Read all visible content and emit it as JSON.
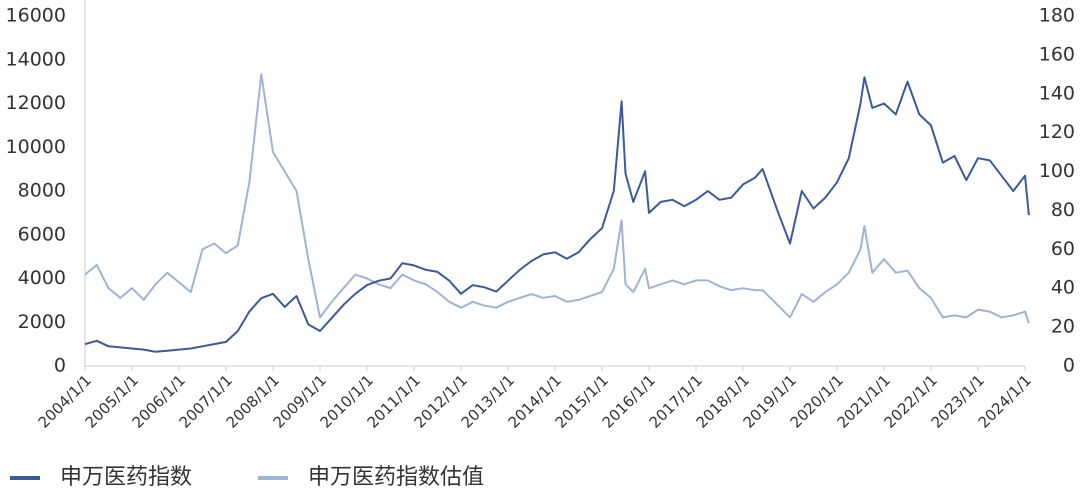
{
  "chart_data": {
    "type": "line",
    "x": [
      "2004/1/1",
      "2004/4/1",
      "2004/7/1",
      "2004/10/1",
      "2005/1/1",
      "2005/4/1",
      "2005/7/1",
      "2005/10/1",
      "2006/1/1",
      "2006/4/1",
      "2006/7/1",
      "2006/10/1",
      "2007/1/1",
      "2007/4/1",
      "2007/7/1",
      "2007/10/1",
      "2008/1/1",
      "2008/4/1",
      "2008/7/1",
      "2008/10/1",
      "2009/1/1",
      "2009/4/1",
      "2009/7/1",
      "2009/10/1",
      "2010/1/1",
      "2010/4/1",
      "2010/7/1",
      "2010/10/1",
      "2011/1/1",
      "2011/4/1",
      "2011/7/1",
      "2011/10/1",
      "2012/1/1",
      "2012/4/1",
      "2012/7/1",
      "2012/10/1",
      "2013/1/1",
      "2013/4/1",
      "2013/7/1",
      "2013/10/1",
      "2014/1/1",
      "2014/4/1",
      "2014/7/1",
      "2014/10/1",
      "2015/1/1",
      "2015/4/1",
      "2015/6/1",
      "2015/7/1",
      "2015/9/1",
      "2015/12/1",
      "2016/1/1",
      "2016/4/1",
      "2016/7/1",
      "2016/10/1",
      "2017/1/1",
      "2017/4/1",
      "2017/7/1",
      "2017/10/1",
      "2018/1/1",
      "2018/4/1",
      "2018/6/1",
      "2018/10/1",
      "2019/1/1",
      "2019/4/1",
      "2019/7/1",
      "2019/10/1",
      "2020/1/1",
      "2020/4/1",
      "2020/7/1",
      "2020/8/1",
      "2020/10/1",
      "2021/1/1",
      "2021/4/1",
      "2021/7/1",
      "2021/10/1",
      "2022/1/1",
      "2022/4/1",
      "2022/7/1",
      "2022/10/1",
      "2023/1/1",
      "2023/4/1",
      "2023/7/1",
      "2023/10/1",
      "2024/1/1",
      "2024/2/1"
    ],
    "series": [
      {
        "name": "申万医药指数",
        "color": "#3a5a9e",
        "values": [
          1000,
          1150,
          900,
          850,
          800,
          750,
          650,
          700,
          750,
          800,
          900,
          1000,
          1100,
          1600,
          2500,
          3100,
          3300,
          2700,
          3200,
          1900,
          1600,
          2200,
          2800,
          3300,
          3700,
          3900,
          4000,
          4700,
          4600,
          4400,
          4300,
          3900,
          3300,
          3700,
          3600,
          3400,
          3900,
          4400,
          4800,
          5100,
          5200,
          4900,
          5200,
          5800,
          6300,
          8000,
          12100,
          8800,
          7500,
          8900,
          7000,
          7500,
          7600,
          7300,
          7600,
          8000,
          7600,
          7700,
          8300,
          8600,
          9000,
          7000,
          5600,
          8000,
          7200,
          7700,
          8400,
          9500,
          12000,
          13200,
          11800,
          12000,
          11500,
          13000,
          11500,
          11000,
          9300,
          9600,
          8500,
          9500,
          9400,
          8700,
          8000,
          8700,
          6900
        ]
      },
      {
        "name": "申万医药指数估值",
        "color": "#9eb3d9",
        "axis": "y2",
        "values": [
          47,
          52,
          40,
          35,
          40,
          34,
          42,
          48,
          43,
          38,
          60,
          63,
          58,
          62,
          95,
          150,
          110,
          100,
          90,
          55,
          25,
          33,
          40,
          47,
          45,
          42,
          40,
          47,
          44,
          42,
          38,
          33,
          30,
          33,
          31,
          30,
          33,
          35,
          37,
          35,
          36,
          33,
          34,
          36,
          38,
          50,
          75,
          42,
          38,
          50,
          40,
          42,
          44,
          42,
          44,
          44,
          41,
          39,
          40,
          39,
          39,
          31,
          25,
          37,
          33,
          38,
          42,
          48,
          60,
          72,
          48,
          55,
          48,
          49,
          40,
          35,
          25,
          26,
          25,
          29,
          28,
          25,
          26,
          28,
          22
        ]
      }
    ],
    "ylim": [
      0,
      16000
    ],
    "yticks": [
      0,
      2000,
      4000,
      6000,
      8000,
      10000,
      12000,
      14000,
      16000
    ],
    "y2lim": [
      0,
      180
    ],
    "y2ticks": [
      0,
      20,
      40,
      60,
      80,
      100,
      120,
      140,
      160,
      180
    ],
    "xticks": [
      "2004/1/1",
      "2005/1/1",
      "2006/1/1",
      "2007/1/1",
      "2008/1/1",
      "2009/1/1",
      "2010/1/1",
      "2011/1/1",
      "2012/1/1",
      "2013/1/1",
      "2014/1/1",
      "2015/1/1",
      "2016/1/1",
      "2017/1/1",
      "2018/1/1",
      "2019/1/1",
      "2020/1/1",
      "2021/1/1",
      "2022/1/1",
      "2023/1/1",
      "2024/1/1"
    ],
    "legend": "bottom"
  }
}
